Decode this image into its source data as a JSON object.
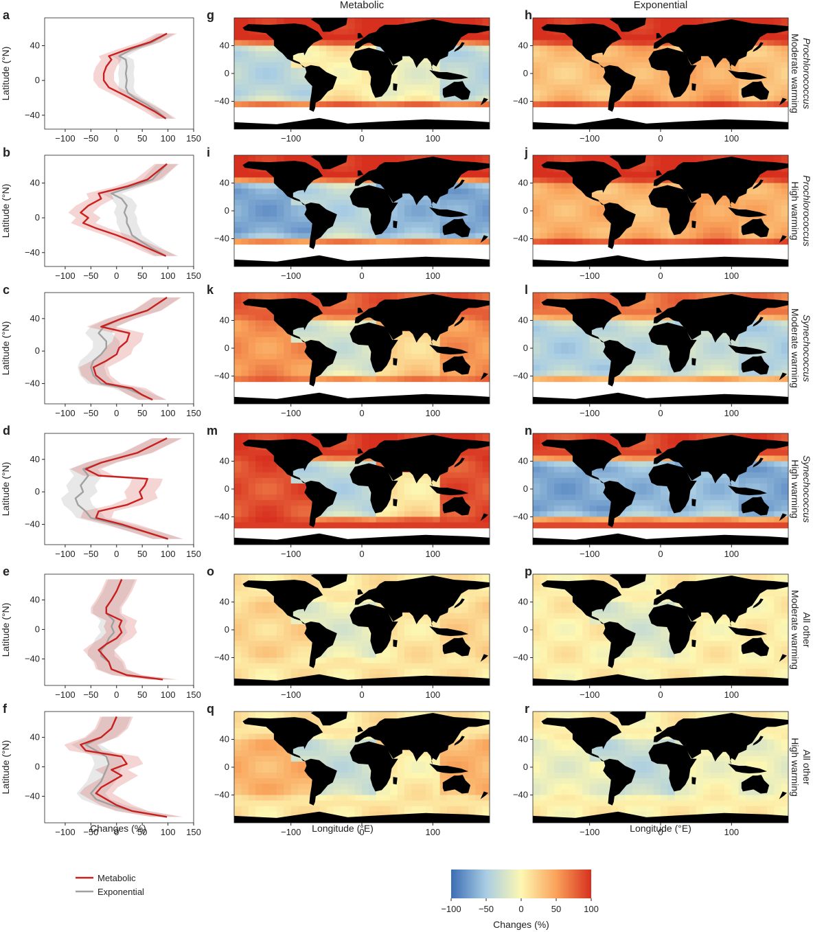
{
  "column_titles": {
    "metabolic": "Metabolic",
    "exponential": "Exponential"
  },
  "row_labels": [
    {
      "organism": "Prochlorococcus",
      "scenario": "Moderate warming"
    },
    {
      "organism": "Prochlorococcus",
      "scenario": "High warming"
    },
    {
      "organism": "Synechococcus",
      "scenario": "Moderate warming"
    },
    {
      "organism": "Synechococcus",
      "scenario": "High warming"
    },
    {
      "organism": "All other",
      "scenario": "Moderate warming"
    },
    {
      "organism": "All other",
      "scenario": "High warming"
    }
  ],
  "axis_labels": {
    "profile_x": "Changes (%)",
    "profile_y": "Latitude (°N)",
    "map_x": "Longitude (°E)",
    "colorbar": "Changes (%)"
  },
  "legend": {
    "metabolic": "Metabolic",
    "exponential": "Exponential"
  },
  "colors": {
    "metabolic": "#c8201e",
    "exponential": "#a0a0a0",
    "land": "#000000",
    "cmap_low": "#3b6db5",
    "cmap_mid": "#fdf7b2",
    "cmap_high": "#d7301f"
  },
  "chart_data": [
    {
      "type": "line",
      "panel": "a",
      "row": 0,
      "xlim": [
        -140,
        150
      ],
      "ylim": [
        -56,
        72
      ],
      "xticks": [
        -100,
        -50,
        0,
        50,
        100,
        150
      ],
      "yticks": [
        40,
        0,
        -40
      ],
      "series": [
        {
          "name": "Metabolic",
          "lat": [
            -44,
            -36,
            -28,
            -20,
            -14,
            -8,
            0,
            8,
            16,
            24,
            28,
            36,
            44,
            54
          ],
          "values": [
            96,
            75,
            50,
            25,
            5,
            -15,
            -25,
            -25,
            -20,
            -10,
            -15,
            22,
            65,
            98
          ],
          "spread": 20
        },
        {
          "name": "Exponential",
          "lat": [
            -44,
            -36,
            -28,
            -20,
            -14,
            -8,
            0,
            8,
            16,
            24,
            28,
            36,
            44,
            54
          ],
          "values": [
            96,
            80,
            60,
            35,
            22,
            18,
            20,
            18,
            20,
            18,
            5,
            30,
            70,
            98
          ],
          "spread": 15
        }
      ]
    },
    {
      "type": "line",
      "panel": "b",
      "row": 1,
      "xlim": [
        -140,
        150
      ],
      "ylim": [
        -56,
        72
      ],
      "xticks": [
        -100,
        -50,
        0,
        50,
        100,
        150
      ],
      "yticks": [
        40,
        0,
        -40
      ],
      "series": [
        {
          "name": "Metabolic",
          "lat": [
            -44,
            -36,
            -28,
            -20,
            -12,
            -6,
            0,
            6,
            14,
            22,
            28,
            36,
            44,
            62
          ],
          "values": [
            96,
            65,
            35,
            0,
            -40,
            -65,
            -55,
            -70,
            -55,
            -30,
            -35,
            20,
            60,
            98
          ],
          "spread": 24
        },
        {
          "name": "Exponential",
          "lat": [
            -44,
            -36,
            -28,
            -20,
            -12,
            -6,
            0,
            6,
            14,
            22,
            28,
            36,
            44,
            62
          ],
          "values": [
            96,
            72,
            50,
            30,
            25,
            20,
            20,
            15,
            20,
            10,
            -10,
            30,
            70,
            98
          ],
          "spread": 20
        }
      ]
    },
    {
      "type": "line",
      "panel": "c",
      "row": 2,
      "xlim": [
        -140,
        150
      ],
      "ylim": [
        -65,
        72
      ],
      "xticks": [
        -100,
        -50,
        0,
        50,
        100,
        150
      ],
      "yticks": [
        40,
        0,
        -40
      ],
      "series": [
        {
          "name": "Metabolic",
          "lat": [
            -60,
            -54,
            -46,
            -40,
            -30,
            -20,
            -12,
            -4,
            4,
            12,
            22,
            30,
            40,
            50,
            66
          ],
          "values": [
            70,
            50,
            30,
            -20,
            -40,
            -45,
            -20,
            0,
            5,
            20,
            25,
            -30,
            10,
            60,
            98
          ],
          "spread": 28
        },
        {
          "name": "Exponential",
          "lat": [
            -60,
            -54,
            -46,
            -40,
            -30,
            -20,
            -12,
            -4,
            4,
            12,
            22,
            30,
            40,
            50,
            66
          ],
          "values": [
            70,
            50,
            20,
            -30,
            -45,
            -50,
            -45,
            -30,
            -20,
            -20,
            -35,
            -25,
            10,
            60,
            98
          ],
          "spread": 26
        }
      ]
    },
    {
      "type": "line",
      "panel": "d",
      "row": 3,
      "xlim": [
        -140,
        150
      ],
      "ylim": [
        -65,
        72
      ],
      "xticks": [
        -100,
        -50,
        0,
        50,
        100,
        150
      ],
      "yticks": [
        40,
        0,
        -40
      ],
      "series": [
        {
          "name": "Metabolic",
          "lat": [
            -58,
            -50,
            -40,
            -32,
            -24,
            -16,
            -8,
            0,
            8,
            16,
            20,
            28,
            36,
            48,
            66
          ],
          "values": [
            100,
            60,
            10,
            -40,
            -35,
            20,
            50,
            45,
            55,
            60,
            -35,
            -60,
            -30,
            40,
            98
          ],
          "spread": 30
        },
        {
          "name": "Exponential",
          "lat": [
            -58,
            -50,
            -40,
            -32,
            -24,
            -16,
            -8,
            0,
            8,
            16,
            20,
            28,
            36,
            48,
            66
          ],
          "values": [
            100,
            60,
            0,
            -50,
            -60,
            -75,
            -80,
            -65,
            -70,
            -60,
            -55,
            -65,
            -30,
            40,
            98
          ],
          "spread": 28
        }
      ]
    },
    {
      "type": "line",
      "panel": "e",
      "row": 4,
      "xlim": [
        -140,
        150
      ],
      "ylim": [
        -76,
        75
      ],
      "xticks": [
        -100,
        -50,
        0,
        50,
        100,
        150
      ],
      "yticks": [
        40,
        0,
        -40
      ],
      "series": [
        {
          "name": "Metabolic",
          "lat": [
            -68,
            -62,
            -54,
            -44,
            -36,
            -28,
            -20,
            -12,
            -4,
            4,
            12,
            22,
            30,
            40,
            52,
            68
          ],
          "values": [
            90,
            20,
            -10,
            -15,
            -25,
            -35,
            -20,
            0,
            10,
            5,
            10,
            -20,
            -20,
            -10,
            0,
            10
          ],
          "spread": 30
        },
        {
          "name": "Exponential",
          "lat": [
            -68,
            -62,
            -54,
            -44,
            -36,
            -28,
            -20,
            -12,
            -4,
            4,
            12,
            22,
            30,
            40,
            52,
            68
          ],
          "values": [
            90,
            20,
            -10,
            -15,
            -30,
            -30,
            -20,
            -15,
            -5,
            -10,
            -5,
            -20,
            -20,
            -10,
            0,
            10
          ],
          "spread": 26
        }
      ]
    },
    {
      "type": "line",
      "panel": "f",
      "row": 5,
      "xlim": [
        -140,
        150
      ],
      "ylim": [
        -76,
        75
      ],
      "xticks": [
        -100,
        -50,
        0,
        50,
        100,
        150
      ],
      "yticks": [
        40,
        0,
        -40
      ],
      "series": [
        {
          "name": "Metabolic",
          "lat": [
            -68,
            -60,
            -52,
            -44,
            -36,
            -28,
            -20,
            -12,
            -4,
            4,
            14,
            22,
            30,
            40,
            52,
            68
          ],
          "values": [
            98,
            30,
            0,
            -20,
            -40,
            -30,
            -10,
            10,
            -10,
            20,
            10,
            -60,
            -70,
            -30,
            -10,
            0
          ],
          "spread": 32
        },
        {
          "name": "Exponential",
          "lat": [
            -68,
            -60,
            -52,
            -44,
            -36,
            -28,
            -20,
            -12,
            -4,
            4,
            14,
            22,
            30,
            40,
            52,
            68
          ],
          "values": [
            98,
            30,
            -10,
            -40,
            -50,
            -40,
            -30,
            -25,
            -20,
            -15,
            -20,
            -40,
            -60,
            -30,
            -10,
            0
          ],
          "spread": 28
        }
      ]
    },
    {
      "type": "heatmap",
      "row": 0,
      "panels": [
        "g",
        "h"
      ],
      "xlim": [
        -180,
        180
      ],
      "ylim": [
        -80,
        80
      ],
      "xticks": [
        -100,
        0,
        100
      ],
      "yticks": [
        40,
        0,
        -40
      ],
      "metabolic": {
        "pacific": -40,
        "atlantic": 5,
        "indian": -10,
        "high_lat": 100,
        "ocean_limit_south": -44
      },
      "exponential": {
        "pacific": 30,
        "atlantic": 40,
        "indian": 45,
        "high_lat": 100,
        "ocean_limit_south": -44
      }
    },
    {
      "type": "heatmap",
      "row": 1,
      "panels": [
        "i",
        "j"
      ],
      "xlim": [
        -180,
        180
      ],
      "ylim": [
        -80,
        80
      ],
      "xticks": [
        -100,
        0,
        100
      ],
      "yticks": [
        40,
        0,
        -40
      ],
      "metabolic": {
        "pacific": -70,
        "atlantic": -40,
        "indian": -60,
        "high_lat": 100,
        "ocean_limit_south": -44
      },
      "exponential": {
        "pacific": 40,
        "atlantic": 35,
        "indian": 50,
        "high_lat": 100,
        "ocean_limit_south": -44
      }
    },
    {
      "type": "heatmap",
      "row": 2,
      "panels": [
        "k",
        "l"
      ],
      "xlim": [
        -180,
        180
      ],
      "ylim": [
        -80,
        80
      ],
      "xticks": [
        -100,
        0,
        100
      ],
      "yticks": [
        40,
        0,
        -40
      ],
      "metabolic": {
        "pacific": 55,
        "atlantic": -25,
        "indian": 20,
        "high_lat": 80,
        "ocean_limit_south": -50
      },
      "exponential": {
        "pacific": -45,
        "atlantic": -35,
        "indian": -30,
        "high_lat": 70,
        "ocean_limit_south": -50
      }
    },
    {
      "type": "heatmap",
      "row": 3,
      "panels": [
        "m",
        "n"
      ],
      "xlim": [
        -180,
        180
      ],
      "ylim": [
        -80,
        80
      ],
      "xticks": [
        -100,
        0,
        100
      ],
      "yticks": [
        40,
        0,
        -40
      ],
      "metabolic": {
        "pacific": 85,
        "atlantic": -40,
        "indian": 10,
        "high_lat": 95,
        "ocean_limit_south": -55
      },
      "exponential": {
        "pacific": -70,
        "atlantic": -60,
        "indian": -55,
        "high_lat": 90,
        "ocean_limit_south": -55
      }
    },
    {
      "type": "heatmap",
      "row": 4,
      "panels": [
        "o",
        "p"
      ],
      "xlim": [
        -180,
        180
      ],
      "ylim": [
        -80,
        80
      ],
      "xticks": [
        -100,
        0,
        100
      ],
      "yticks": [
        40,
        0,
        -40
      ],
      "metabolic": {
        "pacific": 20,
        "atlantic": -15,
        "indian": 10,
        "high_lat": 10,
        "ocean_limit_south": -75
      },
      "exponential": {
        "pacific": 5,
        "atlantic": -20,
        "indian": 5,
        "high_lat": 5,
        "ocean_limit_south": -75
      }
    },
    {
      "type": "heatmap",
      "row": 5,
      "panels": [
        "q",
        "r"
      ],
      "xlim": [
        -180,
        180
      ],
      "ylim": [
        -80,
        80
      ],
      "xticks": [
        -100,
        0,
        100
      ],
      "yticks": [
        40,
        0,
        -40
      ],
      "metabolic": {
        "pacific": 40,
        "atlantic": -30,
        "indian": 5,
        "high_lat": 10,
        "ocean_limit_south": -75
      },
      "exponential": {
        "pacific": -10,
        "atlantic": -35,
        "indian": -5,
        "high_lat": 5,
        "ocean_limit_south": -75
      }
    },
    {
      "type": "colorbar",
      "range": [
        -100,
        100
      ],
      "ticks": [
        -100,
        -50,
        0,
        50,
        100
      ],
      "label": "Changes (%)"
    }
  ]
}
